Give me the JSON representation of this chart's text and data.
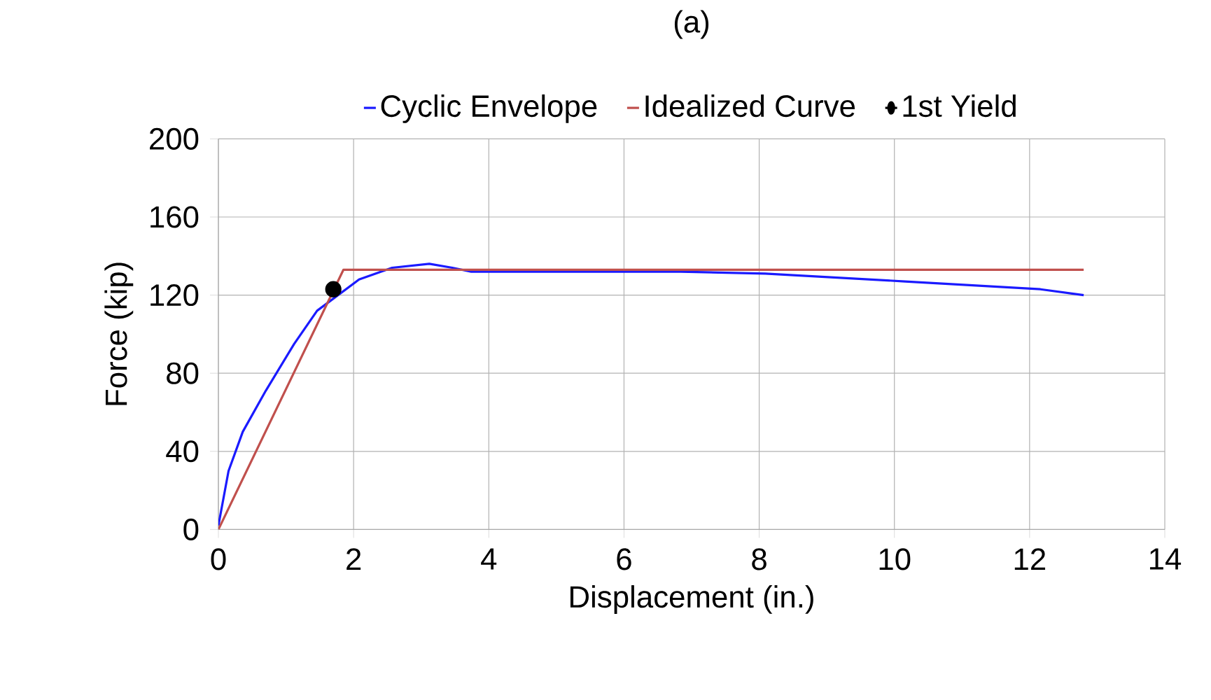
{
  "chart_data": {
    "type": "line",
    "title": "(a)",
    "xlabel": "Displacement (in.)",
    "ylabel": "Force (kip)",
    "xlim": [
      0,
      14
    ],
    "xticks": [
      0,
      2,
      4,
      6,
      8,
      10,
      12,
      14
    ],
    "ylim": [
      0,
      200
    ],
    "yticks": [
      0,
      40,
      80,
      120,
      160,
      200
    ],
    "grid": true,
    "legend": "top",
    "line_style": "solid",
    "series": [
      {
        "name": "Cyclic Envelope",
        "color": "#1a1aff",
        "marker": "none",
        "x": [
          0,
          0.15,
          0.36,
          0.7,
          1.12,
          1.46,
          2.08,
          2.57,
          3.12,
          3.46,
          3.74,
          4.29,
          6.84,
          8.09,
          10.16,
          12.16,
          12.8
        ],
        "values": [
          2,
          30,
          50,
          71,
          95,
          112,
          128,
          134,
          136,
          134,
          132,
          132,
          132,
          131,
          127,
          123,
          120
        ]
      },
      {
        "name": "Idealized Curve",
        "color": "#c0504d",
        "marker": "none",
        "x": [
          0,
          1.85,
          12.8
        ],
        "values": [
          0,
          133,
          133
        ]
      },
      {
        "name": "1st Yield",
        "type": "scatter",
        "color": "#000000",
        "marker": "circle",
        "x": [
          1.7
        ],
        "values": [
          123
        ]
      }
    ]
  }
}
